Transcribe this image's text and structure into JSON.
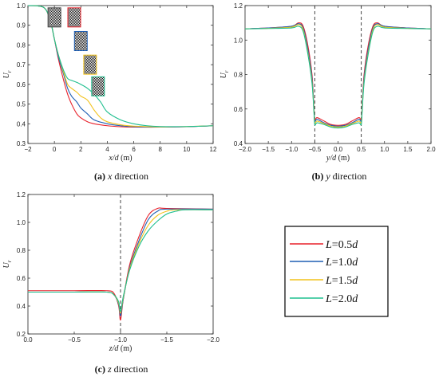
{
  "legend": {
    "entries": [
      {
        "var": "L",
        "value": "=0.5",
        "unit": "d",
        "color": "#e8202a"
      },
      {
        "var": "L",
        "value": "=1.0",
        "unit": "d",
        "color": "#1f5fb4"
      },
      {
        "var": "L",
        "value": "=1.5",
        "unit": "d",
        "color": "#f2c21b"
      },
      {
        "var": "L",
        "value": "=2.0",
        "unit": "d",
        "color": "#1fbf8f"
      }
    ]
  },
  "chart_data": [
    {
      "id": "a",
      "type": "line",
      "caption_letter": "(a)",
      "caption_var": "x",
      "caption_rest": " direction",
      "xlabel_var": "x/d",
      "xlabel_unit": " (m)",
      "ylabel": "U",
      "ylabel_sub": "r",
      "xlim": [
        -2,
        12
      ],
      "ylim": [
        0.3,
        1.0
      ],
      "xticks": [
        -2,
        0,
        2,
        4,
        6,
        8,
        10,
        12
      ],
      "yticks": [
        0.3,
        0.4,
        0.5,
        0.6,
        0.7,
        0.8,
        0.9,
        1.0
      ],
      "xtick_labels": [
        "−2",
        "0",
        "2",
        "4",
        "6",
        "8",
        "10",
        "12"
      ],
      "ytick_labels": [
        "0.3",
        "0.4",
        "0.5",
        "0.6",
        "0.7",
        "0.8",
        "0.9",
        "1.0"
      ],
      "series": [
        {
          "color": "#e8202a",
          "x": [
            -2,
            -0.8,
            -0.3,
            0,
            0.3,
            0.7,
            1.0,
            1.3,
            1.7,
            2.0,
            2.5,
            3.0,
            4.0,
            5.0,
            6.0,
            8.0,
            10.0,
            12.0
          ],
          "y": [
            1.0,
            0.99,
            0.92,
            0.83,
            0.73,
            0.62,
            0.55,
            0.5,
            0.45,
            0.43,
            0.41,
            0.4,
            0.39,
            0.385,
            0.383,
            0.383,
            0.385,
            0.39
          ]
        },
        {
          "color": "#1f5fb4",
          "x": [
            -2,
            -0.8,
            -0.3,
            0,
            0.3,
            0.7,
            1.0,
            1.3,
            1.7,
            2.0,
            2.5,
            3.0,
            4.0,
            5.0,
            6.0,
            8.0,
            10.0,
            12.0
          ],
          "y": [
            1.0,
            0.99,
            0.92,
            0.83,
            0.74,
            0.65,
            0.58,
            0.54,
            0.51,
            0.48,
            0.45,
            0.42,
            0.4,
            0.39,
            0.385,
            0.383,
            0.385,
            0.39
          ]
        },
        {
          "color": "#f2c21b",
          "x": [
            -2,
            -0.8,
            -0.3,
            0,
            0.3,
            0.7,
            1.0,
            1.3,
            1.7,
            2.0,
            2.5,
            3.0,
            3.5,
            4.0,
            5.0,
            6.0,
            8.0,
            10.0,
            12.0
          ],
          "y": [
            1.0,
            0.99,
            0.92,
            0.83,
            0.75,
            0.66,
            0.6,
            0.58,
            0.56,
            0.54,
            0.52,
            0.47,
            0.43,
            0.41,
            0.395,
            0.388,
            0.384,
            0.386,
            0.39
          ]
        },
        {
          "color": "#1fbf8f",
          "x": [
            -2,
            -0.8,
            -0.3,
            0,
            0.3,
            0.7,
            1.0,
            1.3,
            1.7,
            2.0,
            2.5,
            3.0,
            3.5,
            4.0,
            5.0,
            6.0,
            7.0,
            8.0,
            10.0,
            12.0
          ],
          "y": [
            1.0,
            0.99,
            0.92,
            0.83,
            0.75,
            0.67,
            0.63,
            0.62,
            0.61,
            0.6,
            0.58,
            0.55,
            0.51,
            0.46,
            0.42,
            0.4,
            0.39,
            0.386,
            0.386,
            0.39
          ]
        }
      ],
      "markers": [
        {
          "x": 0,
          "y": 0.94,
          "color": "#444444"
        },
        {
          "x": 1.5,
          "y": 0.94,
          "color": "#e8202a"
        },
        {
          "x": 2.0,
          "y": 0.82,
          "color": "#1f5fb4"
        },
        {
          "x": 2.7,
          "y": 0.7,
          "color": "#f2c21b"
        },
        {
          "x": 3.3,
          "y": 0.59,
          "color": "#1fbf8f"
        }
      ]
    },
    {
      "id": "b",
      "type": "line",
      "caption_letter": "(b)",
      "caption_var": "y",
      "caption_rest": " direction",
      "xlabel_var": "y/d",
      "xlabel_unit": " (m)",
      "ylabel": "U",
      "ylabel_sub": "r",
      "xlim": [
        -2.0,
        2.0
      ],
      "ylim": [
        0.4,
        1.2
      ],
      "xticks": [
        -2.0,
        -1.5,
        -1.0,
        -0.5,
        0.0,
        0.5,
        1.0,
        1.5,
        2.0
      ],
      "yticks": [
        0.4,
        0.6,
        0.8,
        1.0,
        1.2
      ],
      "xtick_labels": [
        "−2.0",
        "−1.5",
        "−1.0",
        "−0.5",
        "0.0",
        "0.5",
        "1.0",
        "1.5",
        "2.0"
      ],
      "ytick_labels": [
        "0.4",
        "0.6",
        "0.8",
        "1.0",
        "1.2"
      ],
      "vlines": [
        -0.5,
        0.5
      ],
      "series": [
        {
          "color": "#e8202a",
          "x": [
            -2.0,
            -1.5,
            -1.0,
            -0.85,
            -0.75,
            -0.65,
            -0.56,
            -0.52,
            -0.5,
            -0.45,
            -0.3,
            -0.15,
            0.0,
            0.15,
            0.3,
            0.45,
            0.5,
            0.52,
            0.56,
            0.65,
            0.75,
            0.85,
            1.0,
            1.5,
            2.0
          ],
          "y": [
            1.065,
            1.07,
            1.08,
            1.1,
            1.08,
            0.97,
            0.8,
            0.62,
            0.54,
            0.55,
            0.53,
            0.51,
            0.505,
            0.51,
            0.53,
            0.55,
            0.54,
            0.62,
            0.8,
            0.97,
            1.08,
            1.1,
            1.08,
            1.07,
            1.065
          ]
        },
        {
          "color": "#1f5fb4",
          "x": [
            -2.0,
            -1.5,
            -1.0,
            -0.85,
            -0.75,
            -0.65,
            -0.56,
            -0.52,
            -0.5,
            -0.45,
            -0.3,
            -0.15,
            0.0,
            0.15,
            0.3,
            0.45,
            0.5,
            0.52,
            0.56,
            0.65,
            0.75,
            0.85,
            1.0,
            1.5,
            2.0
          ],
          "y": [
            1.065,
            1.07,
            1.08,
            1.095,
            1.07,
            0.95,
            0.78,
            0.6,
            0.53,
            0.54,
            0.52,
            0.505,
            0.5,
            0.505,
            0.52,
            0.54,
            0.53,
            0.6,
            0.78,
            0.95,
            1.07,
            1.095,
            1.08,
            1.07,
            1.065
          ]
        },
        {
          "color": "#f2c21b",
          "x": [
            -2.0,
            -1.5,
            -1.0,
            -0.85,
            -0.75,
            -0.65,
            -0.56,
            -0.52,
            -0.5,
            -0.45,
            -0.3,
            -0.15,
            0.0,
            0.15,
            0.3,
            0.45,
            0.5,
            0.52,
            0.56,
            0.65,
            0.75,
            0.85,
            1.0,
            1.5,
            2.0
          ],
          "y": [
            1.065,
            1.068,
            1.075,
            1.09,
            1.06,
            0.93,
            0.76,
            0.6,
            0.52,
            0.53,
            0.515,
            0.5,
            0.495,
            0.5,
            0.515,
            0.53,
            0.52,
            0.6,
            0.76,
            0.93,
            1.06,
            1.09,
            1.075,
            1.068,
            1.065
          ]
        },
        {
          "color": "#1fbf8f",
          "x": [
            -2.0,
            -1.5,
            -1.0,
            -0.85,
            -0.75,
            -0.65,
            -0.56,
            -0.52,
            -0.5,
            -0.45,
            -0.3,
            -0.15,
            0.0,
            0.15,
            0.3,
            0.45,
            0.5,
            0.52,
            0.56,
            0.65,
            0.75,
            0.85,
            1.0,
            1.5,
            2.0
          ],
          "y": [
            1.065,
            1.067,
            1.07,
            1.08,
            1.05,
            0.92,
            0.75,
            0.59,
            0.51,
            0.52,
            0.51,
            0.495,
            0.49,
            0.495,
            0.51,
            0.52,
            0.51,
            0.59,
            0.75,
            0.92,
            1.05,
            1.08,
            1.07,
            1.067,
            1.065
          ]
        }
      ]
    },
    {
      "id": "c",
      "type": "line",
      "caption_letter": "(c)",
      "caption_var": "z",
      "caption_rest": " direction",
      "xlabel_var": "z/d",
      "xlabel_unit": " (m)",
      "ylabel": "U",
      "ylabel_sub": "r",
      "xlim": [
        0.0,
        -2.0
      ],
      "ylim": [
        0.2,
        1.2
      ],
      "xticks": [
        0.0,
        -0.5,
        -1.0,
        -1.5,
        -2.0
      ],
      "yticks": [
        0.2,
        0.4,
        0.6,
        0.8,
        1.0,
        1.2
      ],
      "xtick_labels": [
        "0.0",
        "−0.5",
        "−1.0",
        "−1.5",
        "−2.0"
      ],
      "ytick_labels": [
        "0.2",
        "0.4",
        "0.6",
        "0.8",
        "1.0",
        "1.2"
      ],
      "vlines": [
        -1.0
      ],
      "series": [
        {
          "color": "#e8202a",
          "x": [
            0.0,
            -0.5,
            -0.85,
            -0.93,
            -0.98,
            -1.0,
            -1.03,
            -1.1,
            -1.2,
            -1.3,
            -1.4,
            -1.5,
            -2.0
          ],
          "y": [
            0.51,
            0.51,
            0.51,
            0.49,
            0.4,
            0.3,
            0.45,
            0.7,
            0.9,
            1.05,
            1.1,
            1.1,
            1.095
          ]
        },
        {
          "color": "#1f5fb4",
          "x": [
            0.0,
            -0.5,
            -0.85,
            -0.93,
            -0.98,
            -1.0,
            -1.03,
            -1.1,
            -1.2,
            -1.3,
            -1.4,
            -1.5,
            -2.0
          ],
          "y": [
            0.5,
            0.5,
            0.5,
            0.48,
            0.41,
            0.33,
            0.45,
            0.68,
            0.87,
            1.02,
            1.08,
            1.095,
            1.095
          ]
        },
        {
          "color": "#f2c21b",
          "x": [
            0.0,
            -0.5,
            -0.85,
            -0.93,
            -0.98,
            -1.0,
            -1.03,
            -1.1,
            -1.2,
            -1.3,
            -1.4,
            -1.5,
            -1.6,
            -2.0
          ],
          "y": [
            0.5,
            0.5,
            0.5,
            0.48,
            0.42,
            0.35,
            0.46,
            0.67,
            0.85,
            0.98,
            1.05,
            1.08,
            1.09,
            1.09
          ]
        },
        {
          "color": "#1fbf8f",
          "x": [
            0.0,
            -0.5,
            -0.85,
            -0.93,
            -0.98,
            -1.0,
            -1.03,
            -1.1,
            -1.2,
            -1.3,
            -1.4,
            -1.5,
            -1.6,
            -1.7,
            -2.0
          ],
          "y": [
            0.5,
            0.5,
            0.5,
            0.48,
            0.43,
            0.36,
            0.47,
            0.66,
            0.83,
            0.94,
            1.01,
            1.06,
            1.08,
            1.09,
            1.09
          ]
        }
      ]
    }
  ]
}
